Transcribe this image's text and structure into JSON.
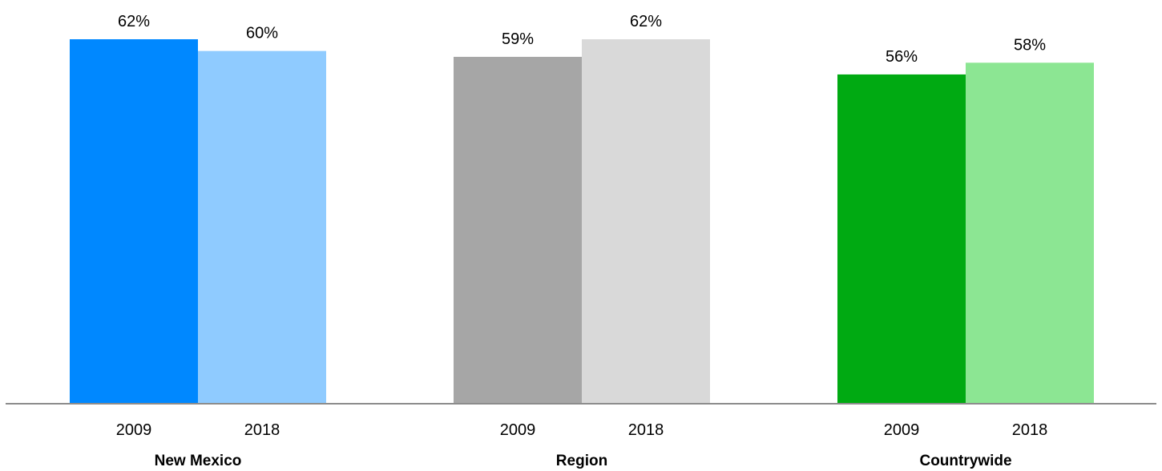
{
  "chart_data": {
    "type": "bar",
    "ylim": [
      0,
      62
    ],
    "grid": false,
    "groups": [
      {
        "name": "New Mexico",
        "bars": [
          {
            "year": "2009",
            "value": 62,
            "label": "62%",
            "color": "#0088FF"
          },
          {
            "year": "2018",
            "value": 60,
            "label": "60%",
            "color": "#8FCBFF"
          }
        ]
      },
      {
        "name": "Region",
        "bars": [
          {
            "year": "2009",
            "value": 59,
            "label": "59%",
            "color": "#A6A6A6"
          },
          {
            "year": "2018",
            "value": 62,
            "label": "62%",
            "color": "#D9D9D9"
          }
        ]
      },
      {
        "name": "Countrywide",
        "bars": [
          {
            "year": "2009",
            "value": 56,
            "label": "56%",
            "color": "#00AA12"
          },
          {
            "year": "2018",
            "value": 58,
            "label": "58%",
            "color": "#8CE693"
          }
        ]
      }
    ]
  }
}
